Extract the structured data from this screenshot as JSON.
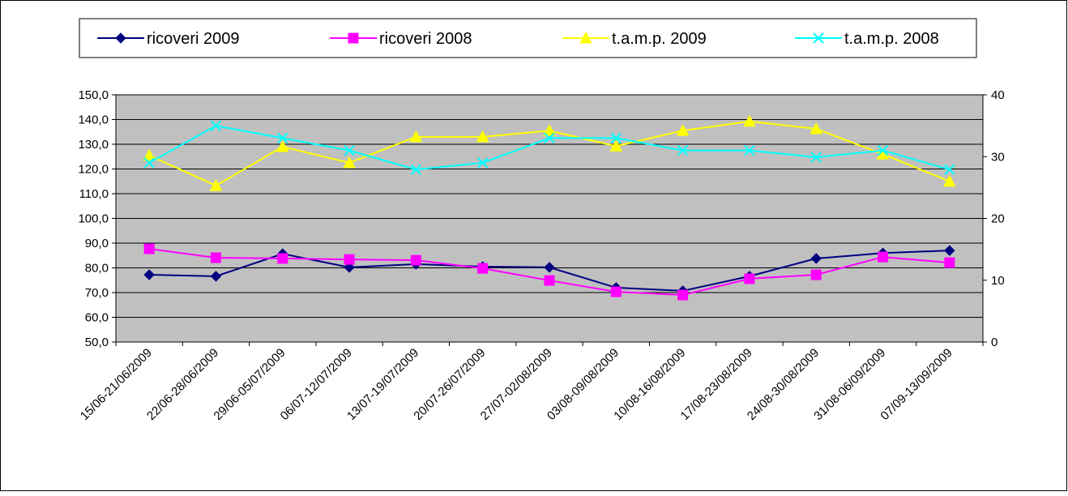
{
  "chart_data": {
    "type": "line",
    "categories": [
      "15/06-21/06/2009",
      "22/06-28/06/2009",
      "29/06-05/07/2009",
      "06/07-12/07/2009",
      "13/07-19/07/2009",
      "20/07-26/07/2009",
      "27/07-02/08/2009",
      "03/08-09/08/2009",
      "10/08-16/08/2009",
      "17/08-23/08/2009",
      "24/08-30/08/2009",
      "31/08-06/09/2009",
      "07/09-13/09/2009"
    ],
    "series": [
      {
        "name": "ricoveri 2009",
        "color": "#000080",
        "marker": "diamond",
        "values": [
          77.2,
          76.6,
          85.7,
          80.2,
          81.5,
          80.5,
          80.2,
          72,
          70.7,
          76.6,
          83.8,
          86,
          87
        ]
      },
      {
        "name": "ricoveri 2008",
        "color": "#ff00ff",
        "marker": "square",
        "values": [
          87.7,
          84.1,
          83.8,
          83.4,
          83.1,
          79.8,
          74.9,
          70.3,
          69,
          75.6,
          77.2,
          84.4,
          82.1
        ]
      },
      {
        "name": "t.a.m.p. 2009",
        "color": "#ffff00",
        "marker": "triangle",
        "axis": "y2",
        "values": [
          30.2,
          25.3,
          31.6,
          29,
          33.2,
          33.2,
          34.2,
          31.7,
          34.2,
          35.7,
          34.5,
          30.4,
          26
        ]
      },
      {
        "name": "t.a.m.p. 2008",
        "color": "#00ffff",
        "marker": "x",
        "axis": "y2",
        "values": [
          29,
          35,
          33,
          31,
          27.9,
          29,
          33,
          33,
          31,
          31,
          29.9,
          31,
          27.9
        ]
      }
    ],
    "ylim": [
      50,
      150
    ],
    "yticks": [
      {
        "value": 50,
        "label": "50,0"
      },
      {
        "value": 60,
        "label": "60,0"
      },
      {
        "value": 70,
        "label": "70,0"
      },
      {
        "value": 80,
        "label": "80,0"
      },
      {
        "value": 90,
        "label": "90,0"
      },
      {
        "value": 100,
        "label": "100,0"
      },
      {
        "value": 110,
        "label": "110,0"
      },
      {
        "value": 120,
        "label": "120,0"
      },
      {
        "value": 130,
        "label": "130,0"
      },
      {
        "value": 140,
        "label": "140,0"
      },
      {
        "value": 150,
        "label": "150,0"
      }
    ],
    "y2lim": [
      0,
      40
    ],
    "y2ticks": [
      0,
      10,
      20,
      30,
      40
    ],
    "grid": true,
    "legend": "top",
    "plot_background": "#c0c0c0"
  }
}
